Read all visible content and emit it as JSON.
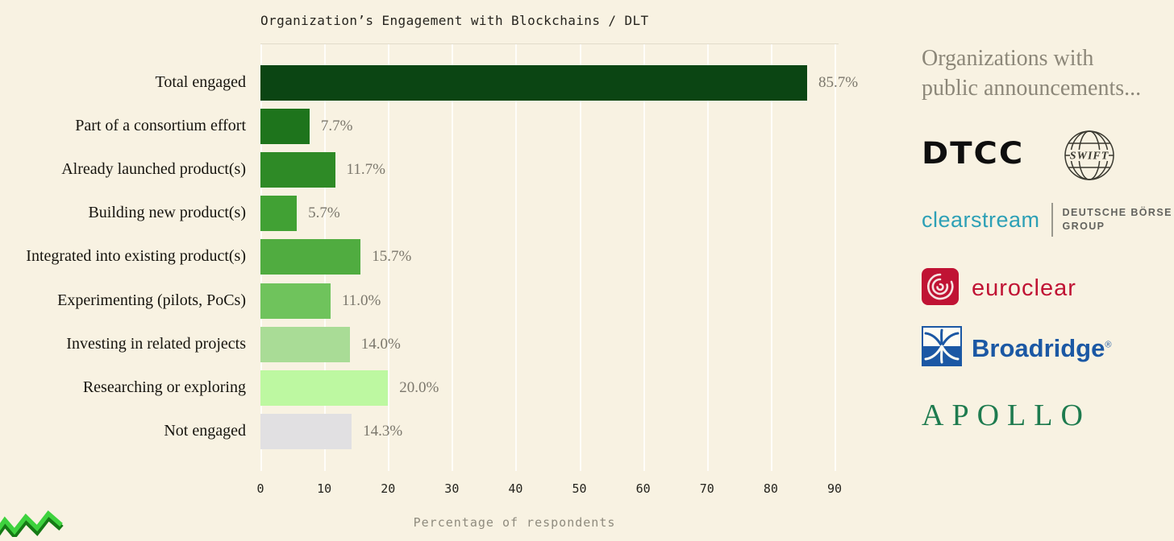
{
  "page": {
    "background_color": "#f8f2e2"
  },
  "chart_data": {
    "type": "bar",
    "orientation": "horizontal",
    "title": "Organization’s Engagement with Blockchains / DLT",
    "xlabel": "Percentage of respondents",
    "categories": [
      "Total engaged",
      "Part of a consortium effort",
      "Already launched product(s)",
      "Building new product(s)",
      "Integrated into existing product(s)",
      "Experimenting (pilots, PoCs)",
      "Investing in related projects",
      "Researching or exploring",
      "Not engaged"
    ],
    "values": [
      85.7,
      7.7,
      11.7,
      5.7,
      15.7,
      11.0,
      14.0,
      20.0,
      14.3
    ],
    "value_labels": [
      "85.7%",
      "7.7%",
      "11.7%",
      "5.7%",
      "15.7%",
      "11.0%",
      "14.0%",
      "20.0%",
      "14.3%"
    ],
    "bar_colors": [
      "#0b4513",
      "#1e741c",
      "#2e8a26",
      "#41a134",
      "#50ac40",
      "#6fc35c",
      "#a9dc96",
      "#bdf8a1",
      "#e1e0e2"
    ],
    "xlim": [
      0,
      90
    ],
    "xticks": [
      0,
      10,
      20,
      30,
      40,
      50,
      60,
      70,
      80,
      90
    ],
    "grid": true,
    "legend": null
  },
  "side_panel": {
    "heading_line1": "Organizations with",
    "heading_line2": "public announcements...",
    "logos": {
      "dtcc": {
        "label": "DTCC",
        "color": "#0e0e0e"
      },
      "swift": {
        "label": "SWIFT",
        "color": "#3a3930"
      },
      "clearstream": {
        "label": "clearstream",
        "color": "#2da0b6",
        "group_line1": "DEUTSCHE BÖRSE",
        "group_line2": "GROUP",
        "group_color": "#63635e"
      },
      "euroclear": {
        "label": "euroclear",
        "color": "#c01334"
      },
      "broadridge": {
        "label": "Broadridge",
        "reg_mark": "®",
        "color": "#1b58a4"
      },
      "apollo": {
        "label": "APOLLO",
        "color": "#1e7b4f"
      }
    }
  }
}
